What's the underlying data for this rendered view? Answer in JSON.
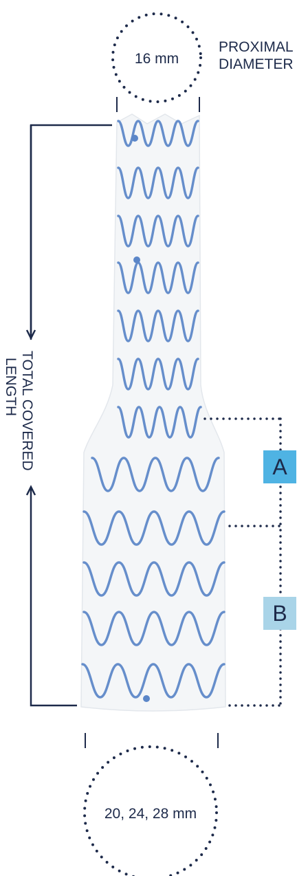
{
  "proximal": {
    "diameter_value": "16 mm",
    "label_line1": "PROXIMAL",
    "label_line2": "DIAMETER"
  },
  "distal": {
    "diameter_value": "20, 24, 28 mm"
  },
  "total_length": {
    "label_line1": "TOTAL COVERED",
    "label_line2": "LENGTH"
  },
  "segments": [
    {
      "id": "A",
      "label": "A",
      "color": "#4fb3e3"
    },
    {
      "id": "B",
      "label": "B",
      "color": "#a9d4e8"
    }
  ],
  "colors": {
    "navy": "#1d2a4a",
    "stent_wire": "#5b86c8",
    "graft_fabric": "#f4f6f8"
  }
}
